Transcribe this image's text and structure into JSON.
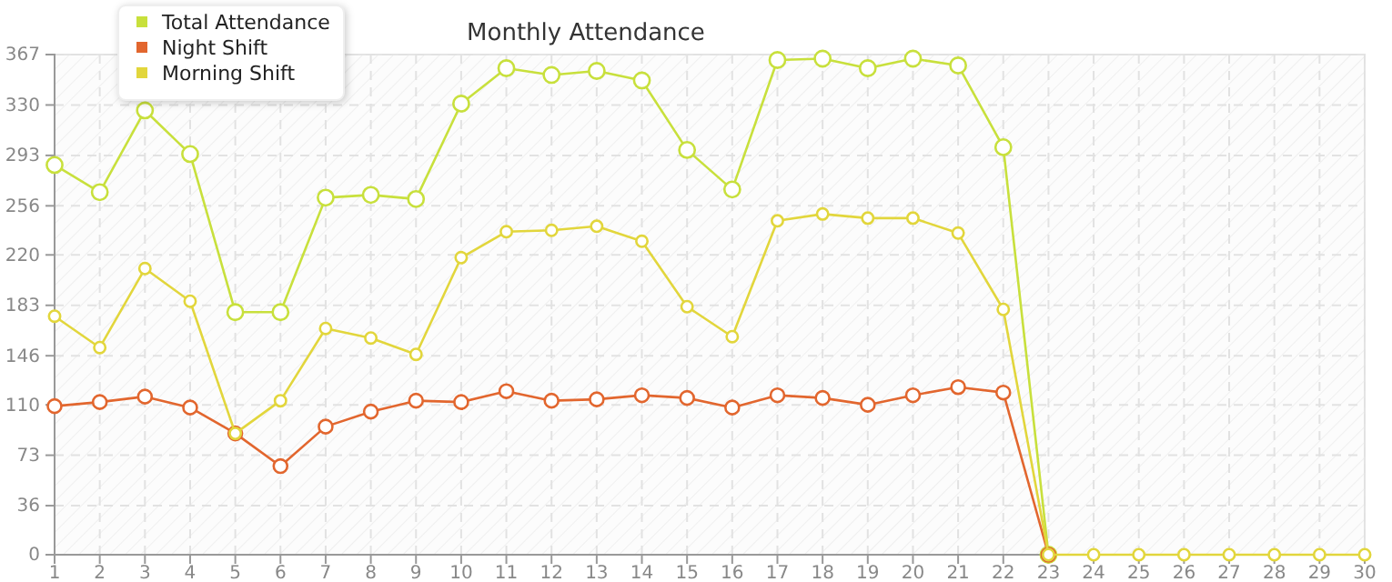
{
  "chart_data": {
    "type": "line",
    "title": "Monthly Attendance",
    "x": [
      1,
      2,
      3,
      4,
      5,
      6,
      7,
      8,
      9,
      10,
      11,
      12,
      13,
      14,
      15,
      16,
      17,
      18,
      19,
      20,
      21,
      22,
      23,
      24,
      25,
      26,
      27,
      28,
      29,
      30
    ],
    "series": [
      {
        "name": "Total Attendance",
        "color": "#c8e03c",
        "values": [
          286,
          266,
          326,
          294,
          178,
          178,
          262,
          264,
          261,
          331,
          357,
          352,
          355,
          348,
          297,
          268,
          363,
          364,
          357,
          364,
          359,
          299,
          0,
          null,
          null,
          null,
          null,
          null,
          null,
          null
        ]
      },
      {
        "name": "Night Shift",
        "color": "#e2662e",
        "values": [
          109,
          112,
          116,
          108,
          89,
          65,
          94,
          105,
          113,
          112,
          120,
          113,
          114,
          117,
          115,
          108,
          117,
          115,
          110,
          117,
          123,
          119,
          0,
          null,
          null,
          null,
          null,
          null,
          null,
          null
        ]
      },
      {
        "name": "Morning Shift",
        "color": "#e2d63c",
        "values": [
          175,
          152,
          210,
          186,
          89,
          113,
          166,
          159,
          147,
          218,
          237,
          238,
          241,
          230,
          182,
          160,
          245,
          250,
          247,
          247,
          236,
          180,
          0,
          0,
          0,
          0,
          0,
          0,
          0,
          0
        ]
      }
    ],
    "xlim": [
      1,
      30
    ],
    "xticks": [
      1,
      2,
      3,
      4,
      5,
      6,
      7,
      8,
      9,
      10,
      11,
      12,
      13,
      14,
      15,
      16,
      17,
      18,
      19,
      20,
      21,
      22,
      23,
      24,
      25,
      26,
      27,
      28,
      29,
      30
    ],
    "ylim": [
      0,
      367
    ],
    "yticks": [
      0,
      36,
      73,
      110,
      146,
      183,
      220,
      256,
      293,
      330,
      367
    ],
    "grid": true,
    "legend": "top left",
    "marker": "circle",
    "line_style": "solid"
  }
}
